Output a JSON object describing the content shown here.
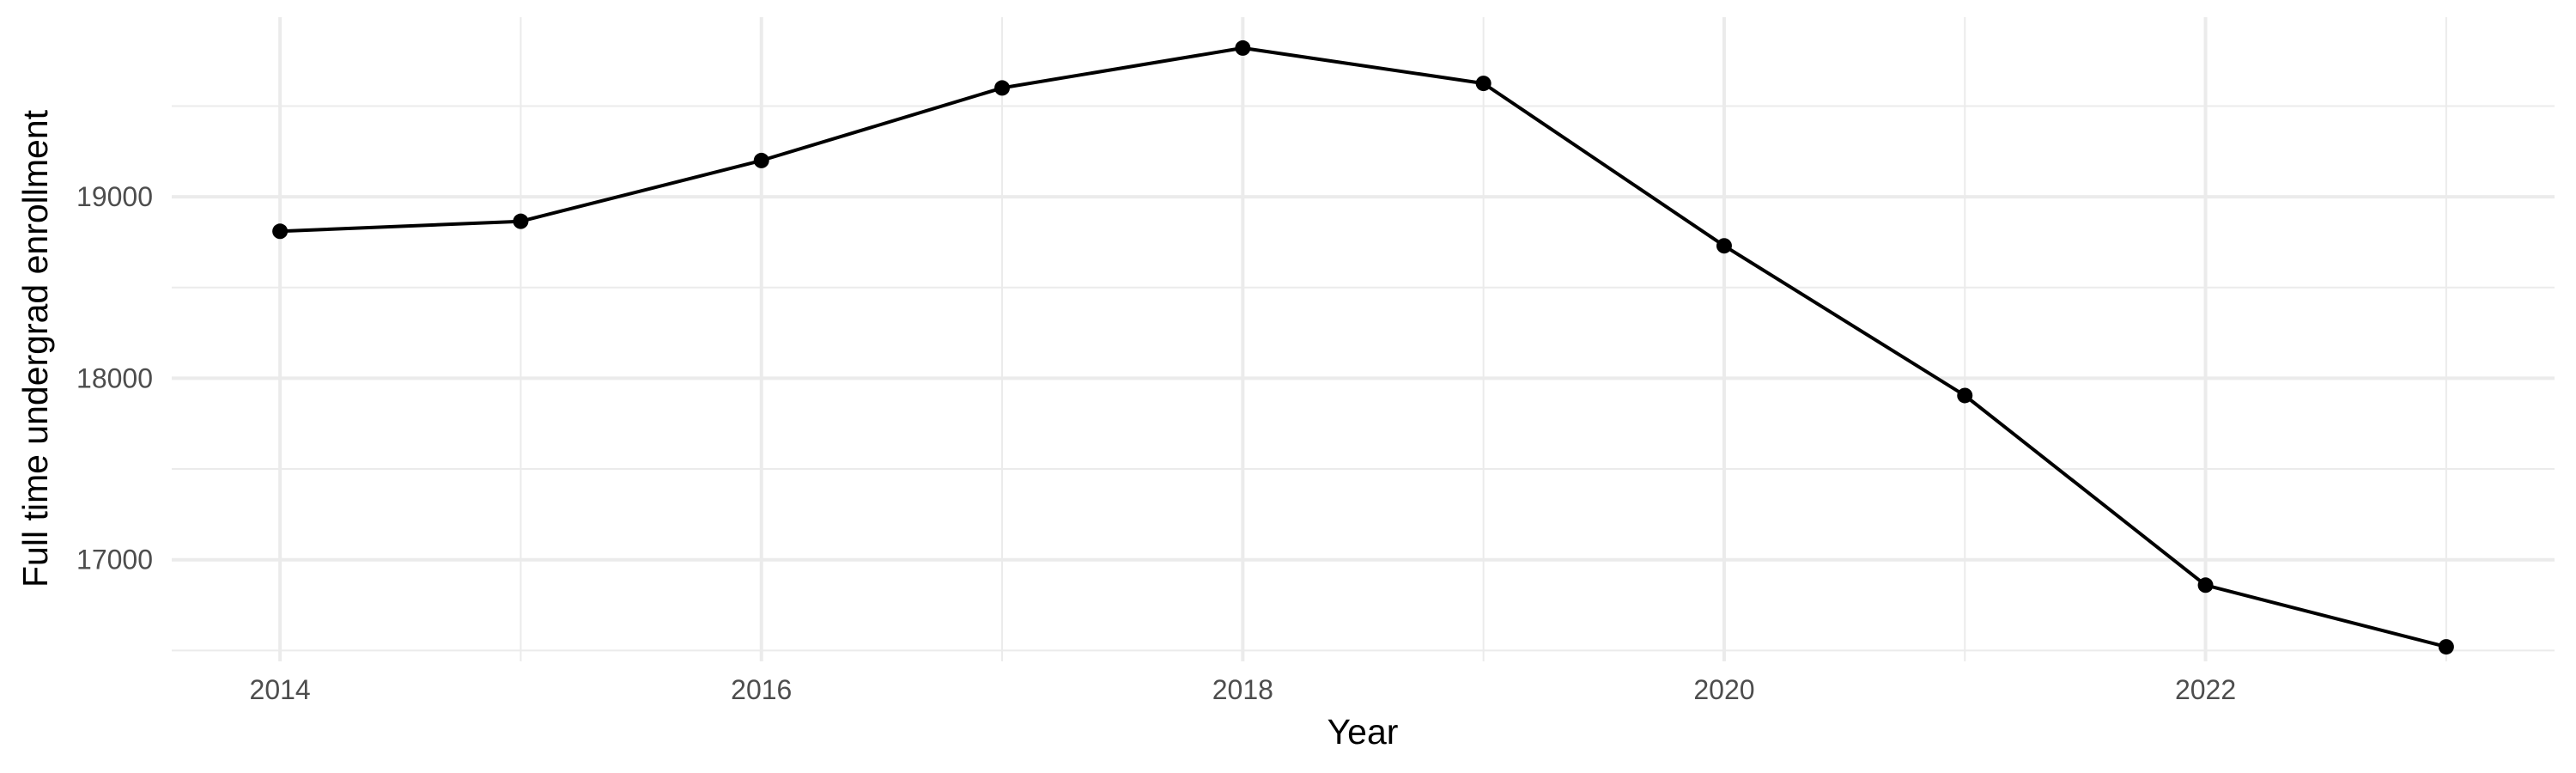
{
  "chart_data": {
    "type": "line",
    "title": "",
    "xlabel": "Year",
    "ylabel": "Full time undergrad enrollment",
    "x": [
      2014,
      2015,
      2016,
      2017,
      2018,
      2019,
      2020,
      2021,
      2022,
      2023
    ],
    "series": [
      {
        "values": [
          18810,
          18865,
          19200,
          19600,
          19820,
          19625,
          18730,
          17905,
          16860,
          16520
        ]
      }
    ],
    "xlim": [
      2013.55,
      2023.45
    ],
    "ylim": [
      16440,
      19990
    ],
    "x_ticks": [
      2014,
      2016,
      2018,
      2020,
      2022
    ],
    "x_tick_labels": [
      "2014",
      "2016",
      "2018",
      "2020",
      "2022"
    ],
    "y_ticks": [
      17000,
      18000,
      19000
    ],
    "y_tick_labels": [
      "17000",
      "18000",
      "19000"
    ],
    "x_minor_ticks": [
      2015,
      2017,
      2019,
      2021,
      2023
    ],
    "y_minor_ticks": [
      16500,
      17500,
      18500,
      19500
    ],
    "grid": true,
    "legend": "none",
    "colors": {
      "line": "#000000",
      "point": "#000000",
      "grid": "#ebebeb",
      "tick_text": "#4d4d4d",
      "background": "#ffffff"
    }
  }
}
